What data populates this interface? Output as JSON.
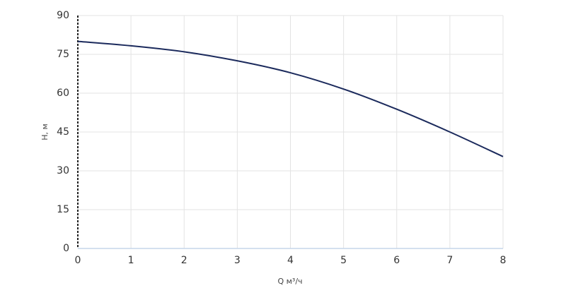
{
  "chart_data": {
    "type": "line",
    "x_label": "Q м³/ч",
    "y_label": "H, м",
    "x": [
      0,
      1,
      2,
      3,
      4,
      5,
      6,
      7,
      8
    ],
    "series": [
      {
        "color": "#1b2a5c",
        "values": [
          80,
          78.3,
          76,
          72.5,
          67.9,
          61.6,
          53.8,
          45,
          35.5
        ]
      }
    ],
    "xlim": [
      0,
      8
    ],
    "xticks": [
      0,
      1,
      2,
      3,
      4,
      5,
      6,
      7,
      8
    ],
    "ylim": [
      0,
      90
    ],
    "yticks": [
      0,
      15,
      30,
      45,
      60,
      75,
      90
    ],
    "grid": true
  }
}
